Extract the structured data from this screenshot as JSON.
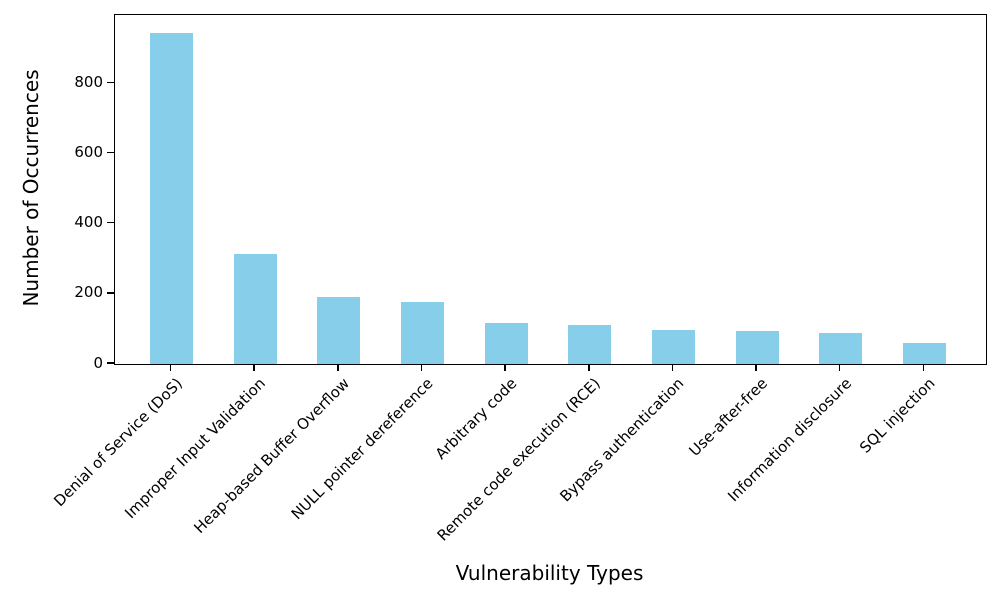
{
  "chart_data": {
    "type": "bar",
    "title": "",
    "categories": [
      "Denial of Service (DoS)",
      "Improper Input Validation",
      "Heap-based Buffer Overflow",
      "NULL pointer dereference",
      "Arbitrary code",
      "Remote code execution (RCE)",
      "Bypass authentication",
      "Use-after-free",
      "Information disclosure",
      "SQL injection"
    ],
    "values": [
      945,
      315,
      190,
      178,
      117,
      110,
      97,
      93,
      89,
      60
    ],
    "xlabel": "Vulnerability Types",
    "ylabel": "Number of Occurrences",
    "ylim": [
      0,
      995
    ],
    "yticks": [
      0,
      200,
      400,
      600,
      800
    ],
    "x_tick_rotation": 45,
    "bar_color": "#87ceeb",
    "axis_color": "#000000",
    "grid": false,
    "legend": false
  }
}
